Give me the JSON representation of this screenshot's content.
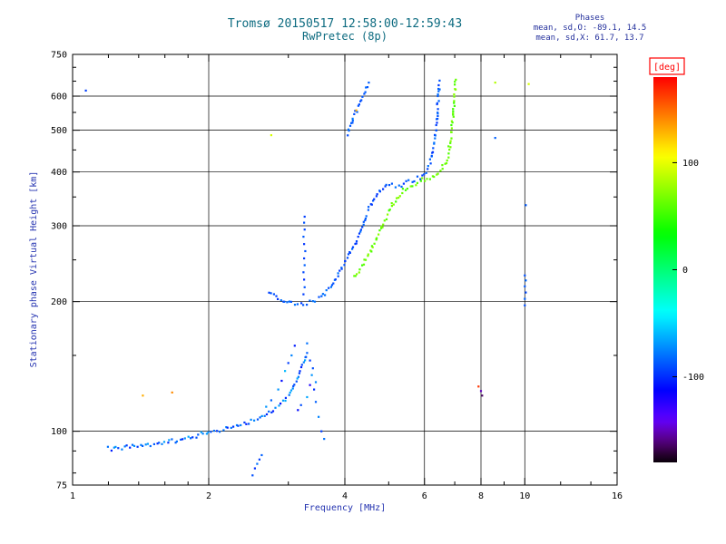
{
  "title": "Tromsø 20150517 12:58:00-12:59:43",
  "subtitle": "RwPretec (8p)",
  "annotations": {
    "header": "Phases",
    "line_o": "mean, sd,O: -89.1, 14.5",
    "line_x": "mean, sd,X:  61.7, 13.7"
  },
  "colors": {
    "title": "#0d6b80",
    "annotation": "#24309c",
    "axis_label": "#2433b0",
    "tick_label": "#000000",
    "frame": "#000000",
    "deg_label": "#ff0000"
  },
  "chart_data": {
    "type": "scatter",
    "title": "Tromsø 20150517 12:58:00-12:59:43",
    "subtitle": "RwPretec (8p)",
    "xlabel": "Frequency [MHz]",
    "ylabel": "Stationary phase Virtual Height [km]",
    "xscale": "log",
    "yscale": "log",
    "xlim": [
      1,
      16
    ],
    "ylim": [
      75,
      750
    ],
    "xticks": [
      1,
      2,
      4,
      6,
      8,
      10,
      16
    ],
    "yticks": [
      75,
      100,
      200,
      300,
      400,
      500,
      600,
      750
    ],
    "xminor": [
      1.2,
      1.4,
      1.6,
      1.8,
      3,
      5,
      7,
      9,
      12,
      14
    ],
    "yminor": [
      80,
      90,
      150,
      250,
      350,
      450,
      550,
      650,
      700
    ],
    "grid_x": [
      2,
      4,
      6,
      8,
      10
    ],
    "grid_y": [
      100,
      200,
      300,
      400,
      500,
      600
    ],
    "grid": true,
    "legend": false,
    "stats": {
      "o_mean": -89.1,
      "o_sd": 14.5,
      "x_mean": 61.7,
      "x_sd": 13.7
    },
    "colorbar": {
      "label": "[deg]",
      "min": -180,
      "max": 180,
      "ticks": [
        100,
        0,
        -100
      ]
    },
    "series": [
      {
        "name": "E-region-trace",
        "phase": -85,
        "phase_jitter": 22,
        "densify": 3,
        "points": [
          [
            1.2,
            91
          ],
          [
            1.32,
            92
          ],
          [
            1.45,
            93
          ],
          [
            1.6,
            94
          ],
          [
            1.75,
            96
          ],
          [
            1.9,
            98
          ],
          [
            2.0,
            100
          ],
          [
            2.15,
            101
          ],
          [
            2.3,
            103
          ],
          [
            2.45,
            105
          ],
          [
            2.6,
            107
          ],
          [
            2.72,
            110
          ],
          [
            2.82,
            113
          ],
          [
            2.92,
            117
          ],
          [
            3.0,
            122
          ],
          [
            3.08,
            128
          ],
          [
            3.16,
            135
          ],
          [
            3.24,
            144
          ],
          [
            3.3,
            152
          ]
        ]
      },
      {
        "name": "E-region-scatter",
        "phase": -85,
        "phase_jitter": 0,
        "densify": 0,
        "points": [
          [
            2.85,
            125,
            -70
          ],
          [
            2.9,
            131,
            -110
          ],
          [
            2.95,
            138,
            -60
          ],
          [
            3.0,
            144,
            -95
          ],
          [
            3.05,
            150,
            -75
          ],
          [
            3.1,
            158,
            -105
          ],
          [
            3.3,
            160,
            -80
          ],
          [
            3.35,
            146,
            -95
          ],
          [
            3.38,
            135,
            -70
          ],
          [
            3.42,
            125,
            -100
          ],
          [
            3.45,
            117,
            -85
          ],
          [
            3.5,
            108,
            -75
          ],
          [
            3.55,
            100,
            -95
          ],
          [
            3.6,
            96,
            -80
          ],
          [
            3.35,
            128,
            -120
          ],
          [
            3.3,
            120,
            -65
          ],
          [
            3.2,
            115,
            -90
          ],
          [
            3.15,
            112,
            -110
          ],
          [
            2.75,
            118,
            -85
          ],
          [
            2.68,
            114,
            -70
          ],
          [
            3.45,
            130,
            -75
          ],
          [
            3.4,
            140,
            -90
          ]
        ]
      },
      {
        "name": "low-altitude-scatter",
        "phase": -90,
        "phase_jitter": 8,
        "densify": 0,
        "points": [
          [
            2.5,
            79,
            -90
          ],
          [
            2.53,
            82,
            -100
          ],
          [
            2.56,
            84,
            -80
          ],
          [
            2.59,
            86,
            -95
          ],
          [
            2.62,
            88,
            -85
          ]
        ]
      },
      {
        "name": "F-region-O-trace",
        "phase": -89,
        "phase_jitter": 10,
        "densify": 3,
        "points": [
          [
            2.72,
            212
          ],
          [
            2.78,
            207
          ],
          [
            2.85,
            203
          ],
          [
            2.95,
            200
          ],
          [
            3.05,
            198
          ],
          [
            3.15,
            197
          ],
          [
            3.3,
            198
          ],
          [
            3.45,
            201
          ],
          [
            3.55,
            205
          ],
          [
            3.65,
            211
          ],
          [
            3.75,
            219
          ],
          [
            3.85,
            229
          ],
          [
            3.95,
            240
          ],
          [
            4.05,
            252
          ],
          [
            4.15,
            264
          ],
          [
            4.25,
            278
          ],
          [
            4.35,
            295
          ],
          [
            4.45,
            315
          ],
          [
            4.55,
            333
          ],
          [
            4.65,
            348
          ],
          [
            4.75,
            359
          ],
          [
            4.85,
            366
          ],
          [
            4.95,
            371
          ],
          [
            5.1,
            373
          ],
          [
            5.25,
            371
          ],
          [
            5.4,
            374
          ],
          [
            5.55,
            379
          ],
          [
            5.7,
            384
          ],
          [
            5.85,
            389
          ],
          [
            6.0,
            397
          ],
          [
            6.1,
            408
          ],
          [
            6.2,
            424
          ],
          [
            6.27,
            448
          ],
          [
            6.32,
            478
          ],
          [
            6.36,
            512
          ],
          [
            6.4,
            548
          ],
          [
            6.43,
            585
          ],
          [
            6.46,
            620
          ],
          [
            6.48,
            652
          ]
        ]
      },
      {
        "name": "F-region-O-vertical-spread",
        "phase": -92,
        "phase_jitter": 0,
        "densify": 0,
        "points": [
          [
            3.24,
            208,
            -95
          ],
          [
            3.26,
            216,
            -88
          ],
          [
            3.25,
            225,
            -100
          ],
          [
            3.24,
            234,
            -92
          ],
          [
            3.26,
            243,
            -85
          ],
          [
            3.25,
            252,
            -96
          ],
          [
            3.27,
            262,
            -90
          ],
          [
            3.25,
            272,
            -98
          ],
          [
            3.24,
            283,
            -87
          ],
          [
            3.26,
            294,
            -93
          ],
          [
            3.25,
            305,
            -89
          ],
          [
            3.26,
            315,
            -95
          ]
        ]
      },
      {
        "name": "F-region-O-upper-streak",
        "phase": -86,
        "phase_jitter": 8,
        "densify": 3,
        "points": [
          [
            4.05,
            490
          ],
          [
            4.12,
            515
          ],
          [
            4.2,
            540
          ],
          [
            4.28,
            565
          ],
          [
            4.36,
            592
          ],
          [
            4.44,
            618
          ],
          [
            4.52,
            645
          ]
        ]
      },
      {
        "name": "F-region-X-trace",
        "phase": 62,
        "phase_jitter": 12,
        "densify": 3,
        "points": [
          [
            4.2,
            228
          ],
          [
            4.3,
            236
          ],
          [
            4.4,
            245
          ],
          [
            4.5,
            255
          ],
          [
            4.6,
            267
          ],
          [
            4.7,
            280
          ],
          [
            4.8,
            294
          ],
          [
            4.9,
            308
          ],
          [
            5.0,
            322
          ],
          [
            5.1,
            335
          ],
          [
            5.2,
            347
          ],
          [
            5.35,
            359
          ],
          [
            5.5,
            368
          ],
          [
            5.65,
            374
          ],
          [
            5.8,
            379
          ],
          [
            5.95,
            383
          ],
          [
            6.1,
            387
          ],
          [
            6.25,
            391
          ],
          [
            6.4,
            396
          ],
          [
            6.5,
            402
          ],
          [
            6.6,
            411
          ],
          [
            6.7,
            424
          ],
          [
            6.78,
            443
          ],
          [
            6.84,
            468
          ],
          [
            6.89,
            498
          ],
          [
            6.93,
            532
          ],
          [
            6.96,
            566
          ],
          [
            6.99,
            600
          ],
          [
            7.02,
            634
          ],
          [
            7.04,
            655
          ]
        ]
      },
      {
        "name": "ten-mhz-streak",
        "phase": -88,
        "phase_jitter": 0,
        "densify": 0,
        "points": [
          [
            10.0,
            196,
            -90
          ],
          [
            10.0,
            203,
            -85
          ],
          [
            10.05,
            210,
            -92
          ],
          [
            10.0,
            217,
            -88
          ],
          [
            10.05,
            224,
            -83
          ],
          [
            10.0,
            230,
            -90
          ],
          [
            10.05,
            335,
            -87
          ]
        ]
      },
      {
        "name": "outliers",
        "phase": 0,
        "phase_jitter": 0,
        "densify": 0,
        "points": [
          [
            1.07,
            618,
            -95
          ],
          [
            1.43,
            121,
            130
          ],
          [
            1.66,
            123,
            140
          ],
          [
            2.75,
            487,
            95
          ],
          [
            4.24,
            556,
            130
          ],
          [
            7.9,
            127,
            165
          ],
          [
            8.0,
            124,
            -150
          ],
          [
            8.05,
            121,
            -165
          ],
          [
            8.6,
            645,
            85
          ],
          [
            8.6,
            480,
            -85
          ],
          [
            10.2,
            640,
            95
          ]
        ]
      }
    ]
  }
}
